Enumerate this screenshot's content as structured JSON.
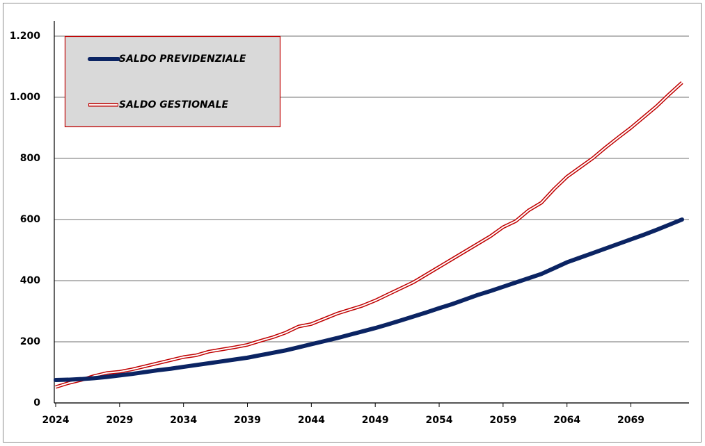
{
  "chart_data": {
    "type": "line",
    "x": [
      2024,
      2025,
      2026,
      2027,
      2028,
      2029,
      2030,
      2031,
      2032,
      2033,
      2034,
      2035,
      2036,
      2037,
      2038,
      2039,
      2040,
      2041,
      2042,
      2043,
      2044,
      2045,
      2046,
      2047,
      2048,
      2049,
      2050,
      2051,
      2052,
      2053,
      2054,
      2055,
      2056,
      2057,
      2058,
      2059,
      2060,
      2061,
      2062,
      2063,
      2064,
      2065,
      2066,
      2067,
      2068,
      2069,
      2070,
      2071,
      2072,
      2073
    ],
    "xlim": [
      2024,
      2073
    ],
    "xticks": [
      2024,
      2029,
      2034,
      2039,
      2044,
      2049,
      2054,
      2059,
      2064,
      2069
    ],
    "ylim": [
      0,
      1200
    ],
    "yticks": [
      0,
      200,
      400,
      600,
      800,
      {
        "value": 1000,
        "label": "1.000"
      },
      {
        "value": 1200,
        "label": "1.200"
      }
    ],
    "grid": true,
    "legend": "upper left",
    "series": [
      {
        "name": "SALDO PREVIDENZIALE",
        "color": "#0b2463",
        "values": [
          75,
          76,
          78,
          81,
          85,
          90,
          95,
          101,
          107,
          112,
          118,
          124,
          130,
          136,
          142,
          148,
          156,
          164,
          172,
          182,
          192,
          202,
          212,
          223,
          234,
          245,
          257,
          270,
          283,
          296,
          310,
          323,
          338,
          353,
          366,
          380,
          394,
          408,
          422,
          441,
          460,
          475,
          490,
          505,
          520,
          535,
          550,
          566,
          583,
          600
        ]
      },
      {
        "name": "SALDO GESTIONALE",
        "color": "#c00000",
        "values": [
          52,
          65,
          75,
          88,
          98,
          102,
          110,
          120,
          130,
          140,
          150,
          156,
          168,
          175,
          182,
          190,
          203,
          215,
          230,
          250,
          258,
          275,
          292,
          305,
          318,
          335,
          355,
          375,
          395,
          420,
          445,
          470,
          495,
          520,
          545,
          575,
          595,
          630,
          655,
          700,
          740,
          770,
          800,
          835,
          868,
          900,
          935,
          970,
          1010,
          1048
        ]
      }
    ]
  }
}
